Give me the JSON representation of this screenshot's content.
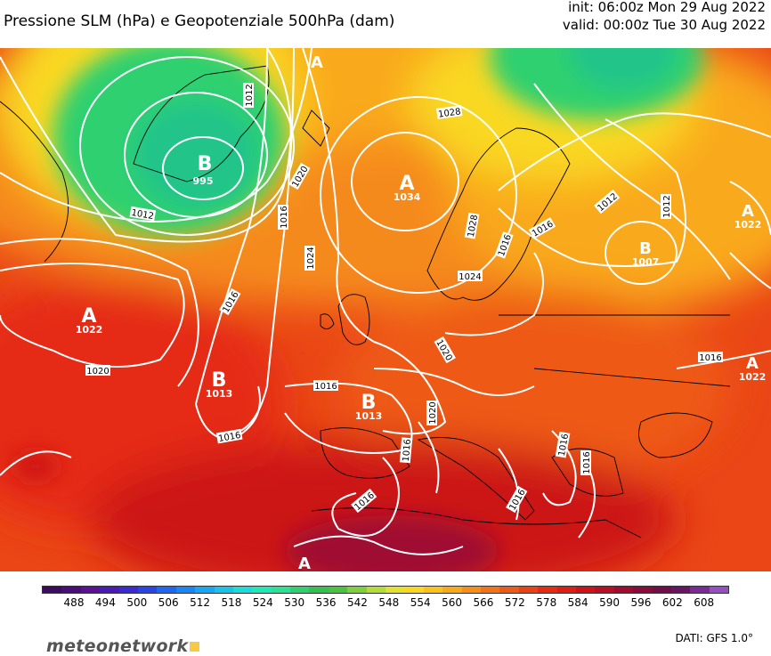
{
  "header": {
    "title": "Pressione SLM (hPa) e Geopotenziale 500hPa (dam)",
    "init": "init: 06:00z Mon 29 Aug 2022",
    "valid": "valid: 00:00z Tue 30 Aug 2022"
  },
  "map": {
    "centers": [
      {
        "type": "B",
        "value": "995"
      },
      {
        "type": "A",
        "value": "1034"
      },
      {
        "type": "A",
        "value": "1022"
      },
      {
        "type": "B",
        "value": "1013"
      },
      {
        "type": "B",
        "value": "1013"
      },
      {
        "type": "B",
        "value": "1007"
      },
      {
        "type": "A",
        "value": "1022"
      },
      {
        "type": "A",
        "value": "1022"
      },
      {
        "type": "A",
        "value": ""
      },
      {
        "type": "A",
        "value": ""
      }
    ],
    "isobar_labels": [
      "1012",
      "1012",
      "1012",
      "1012",
      "1016",
      "1016",
      "1016",
      "1016",
      "1016",
      "1016",
      "1016",
      "1016",
      "1016",
      "1016",
      "1016",
      "1016",
      "1020",
      "1020",
      "1020",
      "1020",
      "1024",
      "1024",
      "1028",
      "1028"
    ]
  },
  "colorbar": {
    "colors": [
      "#3c0a5e",
      "#4b0d7a",
      "#5a1196",
      "#4b1ab4",
      "#3a2bd0",
      "#2a45e6",
      "#1f66f2",
      "#1a86f5",
      "#19a6f2",
      "#1ac4e8",
      "#1ddcd8",
      "#22e8b8",
      "#2ae290",
      "#2fd070",
      "#36c050",
      "#4ac440",
      "#7fd040",
      "#b2dc3a",
      "#e3e22e",
      "#f9d823",
      "#fbc21f",
      "#f9a91c",
      "#f68e1a",
      "#f27318",
      "#ee5a17",
      "#ea4215",
      "#e52c13",
      "#dc1e14",
      "#cc1418",
      "#b80f22",
      "#a00c30",
      "#880b3c",
      "#720d4a",
      "#6a1464",
      "#7a2a90",
      "#9450c0"
    ],
    "ticks": [
      "488",
      "494",
      "500",
      "506",
      "512",
      "518",
      "524",
      "530",
      "536",
      "542",
      "548",
      "554",
      "560",
      "566",
      "572",
      "578",
      "584",
      "590",
      "596",
      "602",
      "608"
    ]
  },
  "footer": {
    "logo": "meteonetwork",
    "source": "DATI: GFS 1.0°"
  }
}
